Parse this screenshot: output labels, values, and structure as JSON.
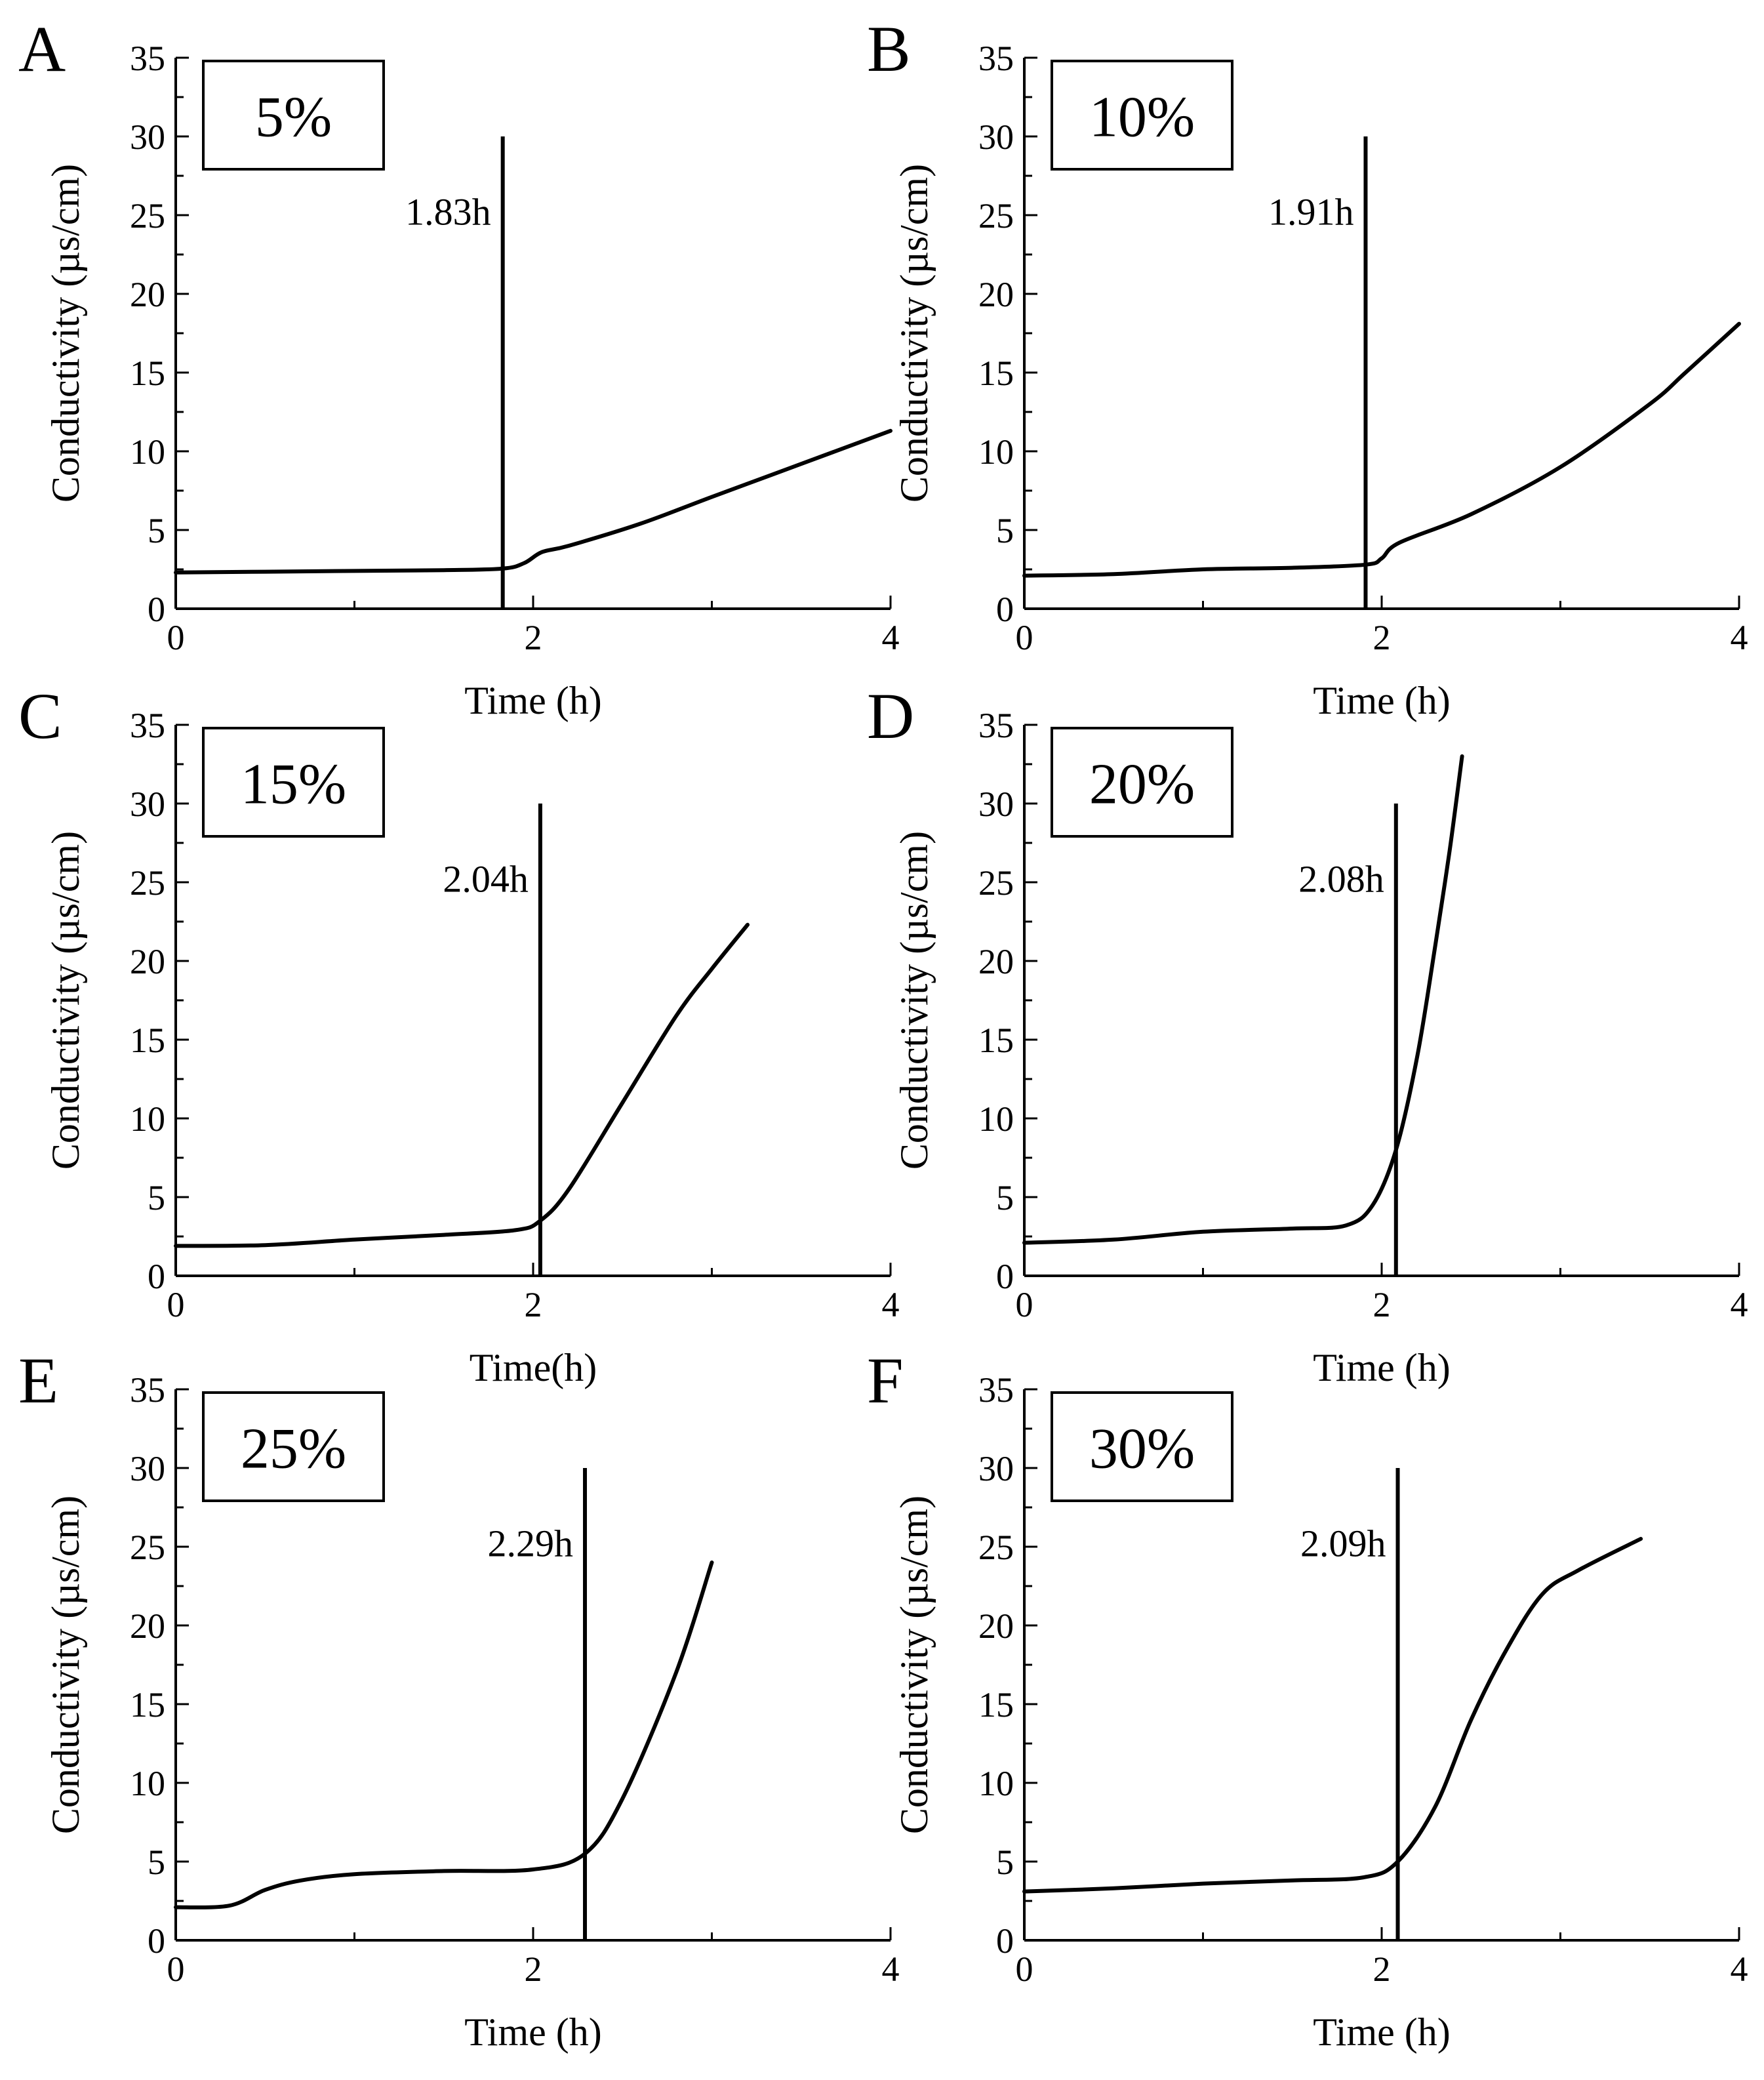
{
  "chart_data": [
    {
      "panel": "A",
      "type": "line",
      "title": "5%",
      "xlabel": "Time (h)",
      "ylabel": "Conductivity (µs/cm)",
      "xlim": [
        0,
        4
      ],
      "ylim": [
        0,
        35
      ],
      "xticks": [
        "0",
        "2",
        "4"
      ],
      "yticks": [
        "0",
        "5",
        "10",
        "15",
        "20",
        "25",
        "30",
        "35"
      ],
      "marker": {
        "x": 1.83,
        "y_top": 30,
        "label": "1.83h"
      },
      "series": [
        {
          "name": "conductivity",
          "x": [
            0,
            0.5,
            1.0,
            1.5,
            1.83,
            1.95,
            2.05,
            2.2,
            2.6,
            3.0,
            3.5,
            4.0
          ],
          "y": [
            2.3,
            2.35,
            2.4,
            2.45,
            2.55,
            2.9,
            3.6,
            4.0,
            5.4,
            7.1,
            9.2,
            11.3
          ]
        }
      ]
    },
    {
      "panel": "B",
      "type": "line",
      "title": "10%",
      "xlabel": "Time (h)",
      "ylabel": "Conductivity (µs/cm)",
      "xlim": [
        0,
        4
      ],
      "ylim": [
        0,
        35
      ],
      "xticks": [
        "0",
        "2",
        "4"
      ],
      "yticks": [
        "0",
        "5",
        "10",
        "15",
        "20",
        "25",
        "30",
        "35"
      ],
      "marker": {
        "x": 1.91,
        "y_top": 30,
        "label": "1.91h"
      },
      "series": [
        {
          "name": "conductivity",
          "x": [
            0,
            0.5,
            1.0,
            1.5,
            1.91,
            2.0,
            2.1,
            2.5,
            3.0,
            3.5,
            3.7,
            4.0
          ],
          "y": [
            2.1,
            2.2,
            2.5,
            2.6,
            2.8,
            3.2,
            4.2,
            6.0,
            9.0,
            13.0,
            15.0,
            18.1
          ]
        }
      ]
    },
    {
      "panel": "C",
      "type": "line",
      "title": "15%",
      "xlabel": "Time(h)",
      "ylabel": "Conductivity (µs/cm)",
      "xlim": [
        0,
        4
      ],
      "ylim": [
        0,
        35
      ],
      "xticks": [
        "0",
        "2",
        "4"
      ],
      "yticks": [
        "0",
        "5",
        "10",
        "15",
        "20",
        "25",
        "30",
        "35"
      ],
      "marker": {
        "x": 2.04,
        "y_top": 30,
        "label": "2.04h"
      },
      "series": [
        {
          "name": "conductivity",
          "x": [
            0,
            0.5,
            1.0,
            1.5,
            1.9,
            2.04,
            2.2,
            2.5,
            2.8,
            3.0,
            3.2
          ],
          "y": [
            1.9,
            1.95,
            2.3,
            2.6,
            2.9,
            3.5,
            5.5,
            11.0,
            16.5,
            19.5,
            22.3
          ]
        }
      ]
    },
    {
      "panel": "D",
      "type": "line",
      "title": "20%",
      "xlabel": "Time (h)",
      "ylabel": "Conductivity (µs/cm)",
      "xlim": [
        0,
        4
      ],
      "ylim": [
        0,
        35
      ],
      "xticks": [
        "0",
        "2",
        "4"
      ],
      "yticks": [
        "0",
        "5",
        "10",
        "15",
        "20",
        "25",
        "30",
        "35"
      ],
      "marker": {
        "x": 2.08,
        "y_top": 30,
        "label": "2.08h"
      },
      "series": [
        {
          "name": "conductivity",
          "x": [
            0,
            0.5,
            1.0,
            1.5,
            1.8,
            1.95,
            2.08,
            2.2,
            2.3,
            2.38,
            2.45
          ],
          "y": [
            2.1,
            2.3,
            2.8,
            3.0,
            3.2,
            4.5,
            8.0,
            14.0,
            21.0,
            27.0,
            33.0
          ]
        }
      ]
    },
    {
      "panel": "E",
      "type": "line",
      "title": "25%",
      "xlabel": "Time (h)",
      "ylabel": "Conductivity (µs/cm)",
      "xlim": [
        0,
        4
      ],
      "ylim": [
        0,
        35
      ],
      "xticks": [
        "0",
        "2",
        "4"
      ],
      "yticks": [
        "0",
        "5",
        "10",
        "15",
        "20",
        "25",
        "30",
        "35"
      ],
      "marker": {
        "x": 2.29,
        "y_top": 30,
        "label": "2.29h"
      },
      "series": [
        {
          "name": "conductivity",
          "x": [
            0,
            0.3,
            0.5,
            0.7,
            1.0,
            1.5,
            2.0,
            2.29,
            2.5,
            2.8,
            3.0
          ],
          "y": [
            2.1,
            2.2,
            3.2,
            3.8,
            4.2,
            4.4,
            4.5,
            5.5,
            9.0,
            17.0,
            24.0
          ]
        }
      ]
    },
    {
      "panel": "F",
      "type": "line",
      "title": "30%",
      "xlabel": "Time (h)",
      "ylabel": "Conductivity (µs/cm)",
      "xlim": [
        0,
        4
      ],
      "ylim": [
        0,
        35
      ],
      "xticks": [
        "0",
        "2",
        "4"
      ],
      "yticks": [
        "0",
        "5",
        "10",
        "15",
        "20",
        "25",
        "30",
        "35"
      ],
      "marker": {
        "x": 2.09,
        "y_top": 30,
        "label": "2.09h"
      },
      "series": [
        {
          "name": "conductivity",
          "x": [
            0,
            0.5,
            1.0,
            1.5,
            1.9,
            2.09,
            2.3,
            2.5,
            2.7,
            2.9,
            3.1,
            3.45
          ],
          "y": [
            3.1,
            3.3,
            3.6,
            3.8,
            4.0,
            5.0,
            8.5,
            14.0,
            18.5,
            22.0,
            23.5,
            25.5
          ]
        }
      ]
    }
  ]
}
